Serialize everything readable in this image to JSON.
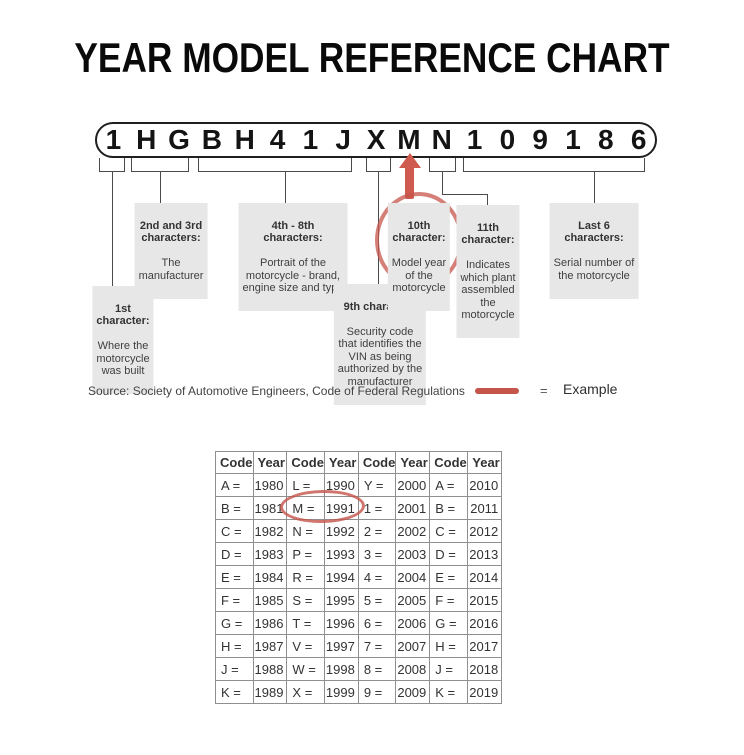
{
  "title": "YEAR MODEL REFERENCE CHART",
  "vin": {
    "characters": [
      "1",
      "H",
      "G",
      "B",
      "H",
      "4",
      "1",
      "J",
      "X",
      "M",
      "N",
      "1",
      "0",
      "9",
      "1",
      "8",
      "6"
    ]
  },
  "callouts": {
    "first": {
      "heading": "1st\ncharacter:",
      "body": "Where the\nmotorcycle\nwas built"
    },
    "second_third": {
      "heading": "2nd and 3rd\ncharacters:",
      "body": "The\nmanufacturer"
    },
    "fourth_eighth": {
      "heading": "4th - 8th\ncharacters:",
      "body": "Portrait of the\nmotorcycle - brand,\nengine size and type"
    },
    "ninth": {
      "heading": "9th character:",
      "body": "Security code\nthat identifies the\nVIN as being\nauthorized by the\nmanufacturer"
    },
    "tenth": {
      "heading": "10th\ncharacter:",
      "body": "Model year\nof the\nmotorcycle"
    },
    "eleventh": {
      "heading": "11th\ncharacter:",
      "body": "Indicates\nwhich plant\nassembled\nthe\nmotorcycle"
    },
    "last_six": {
      "heading": "Last 6\ncharacters:",
      "body": "Serial number of\nthe motorcycle"
    }
  },
  "source": {
    "text": "Source:  Society of Automotive Engineers, Code of Federal Regulations"
  },
  "legend": {
    "equals": "=",
    "label": "Example"
  },
  "table": {
    "headers": [
      "Code",
      "Year",
      "Code",
      "Year",
      "Code",
      "Year",
      "Code",
      "Year"
    ],
    "rows": [
      [
        "A =",
        "1980",
        "L =",
        "1990",
        "Y =",
        "2000",
        "A =",
        "2010"
      ],
      [
        "B =",
        "1981",
        "M =",
        "1991",
        "1 =",
        "2001",
        "B =",
        "2011"
      ],
      [
        "C =",
        "1982",
        "N =",
        "1992",
        "2 =",
        "2002",
        "C =",
        "2012"
      ],
      [
        "D =",
        "1983",
        "P =",
        "1993",
        "3 =",
        "2003",
        "D =",
        "2013"
      ],
      [
        "E =",
        "1984",
        "R =",
        "1994",
        "4 =",
        "2004",
        "E =",
        "2014"
      ],
      [
        "F =",
        "1985",
        "S =",
        "1995",
        "5 =",
        "2005",
        "F =",
        "2015"
      ],
      [
        "G =",
        "1986",
        "T =",
        "1996",
        "6 =",
        "2006",
        "G =",
        "2016"
      ],
      [
        "H =",
        "1987",
        "V =",
        "1997",
        "7 =",
        "2007",
        "H =",
        "2017"
      ],
      [
        "J =",
        "1988",
        "W =",
        "1998",
        "8 =",
        "2008",
        "J =",
        "2018"
      ],
      [
        "K =",
        "1989",
        "X =",
        "1999",
        "9 =",
        "2009",
        "K =",
        "2019"
      ]
    ]
  },
  "colors": {
    "highlight_red": "#c5544a",
    "arrow_red": "#cf5a4e",
    "callout_bg": "#e7e7e7"
  }
}
